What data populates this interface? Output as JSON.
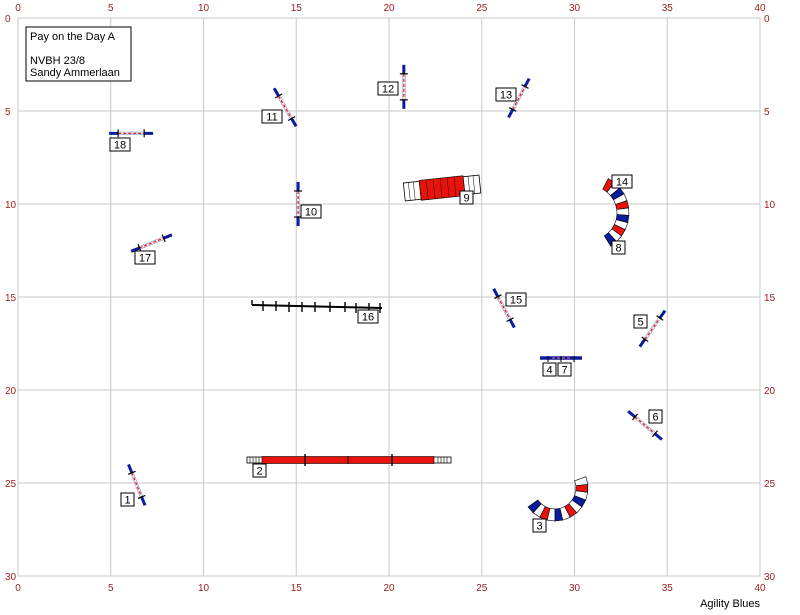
{
  "header": {
    "title": "Pay on the Day A",
    "subtitle": "NVBH 23/8",
    "judge": "Sandy Ammerlaan"
  },
  "credit": "Agility Blues",
  "field": {
    "x_ticks": [
      "0",
      "5",
      "10",
      "15",
      "20",
      "25",
      "30",
      "35",
      "40"
    ],
    "y_ticks": [
      "0",
      "5",
      "10",
      "15",
      "20",
      "25",
      "30"
    ],
    "x_max": 40,
    "y_max": 30
  },
  "obstacles": {
    "jumps": [
      {
        "number": "1",
        "x": 6.4,
        "y": 25.1,
        "angle": 68
      },
      {
        "number": "5",
        "x": 34.2,
        "y": 16.7,
        "angle": -55
      },
      {
        "number": "6",
        "x": 33.8,
        "y": 21.9,
        "angle": 40
      },
      {
        "number": "10",
        "x": 15.1,
        "y": 10.0,
        "angle": 90
      },
      {
        "number": "11",
        "x": 14.4,
        "y": 4.8,
        "angle": 60
      },
      {
        "number": "12",
        "x": 20.8,
        "y": 3.7,
        "angle": 90
      },
      {
        "number": "13",
        "x": 27.0,
        "y": 4.3,
        "angle": -62
      },
      {
        "number": "15",
        "x": 26.2,
        "y": 15.6,
        "angle": 62
      },
      {
        "number": "17",
        "x": 7.2,
        "y": 12.1,
        "angle": -22
      },
      {
        "number": "18",
        "x": 6.1,
        "y": 6.2,
        "angle": 0
      }
    ],
    "double_jump": {
      "numbers": [
        "4",
        "7"
      ],
      "x": 29.4,
      "y": 18.3
    },
    "tunnels": [
      {
        "number": "3"
      },
      {
        "number": "8"
      }
    ],
    "chute": {
      "number": "9"
    },
    "dogwalk": {
      "number": "2"
    },
    "weaves": {
      "number": "16"
    }
  }
}
